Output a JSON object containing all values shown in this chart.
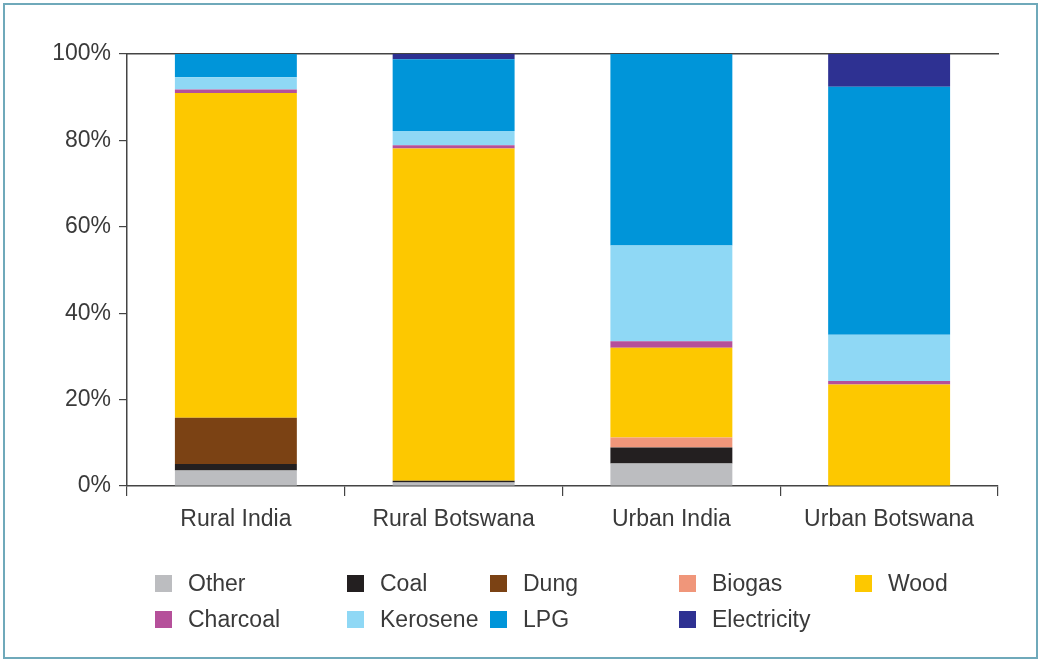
{
  "chart_data": {
    "type": "bar",
    "stacked": true,
    "legend": "bottom",
    "categories": [
      "Rural India",
      "Rural Botswana",
      "Urban India",
      "Urban Botswana"
    ],
    "series": [
      {
        "name": "Other",
        "color": "#bcbdc0",
        "values": [
          3.6,
          0.8,
          5.2,
          0
        ]
      },
      {
        "name": "Coal",
        "color": "#231f20",
        "values": [
          1.5,
          0.4,
          3.7,
          0
        ]
      },
      {
        "name": "Dung",
        "color": "#7b4214",
        "values": [
          10.7,
          0,
          0,
          0
        ]
      },
      {
        "name": "Biogas",
        "color": "#f0967a",
        "values": [
          0,
          0,
          2.3,
          0
        ]
      },
      {
        "name": "Wood",
        "color": "#fdc800",
        "values": [
          75.2,
          76.9,
          20.8,
          23.5
        ]
      },
      {
        "name": "Charcoal",
        "color": "#b5509a",
        "values": [
          0.8,
          0.8,
          1.5,
          0.8
        ]
      },
      {
        "name": "Kerosene",
        "color": "#8fd8f5",
        "values": [
          2.8,
          3.3,
          22.2,
          10.7
        ]
      },
      {
        "name": "LPG",
        "color": "#0095d9",
        "values": [
          5.4,
          16.6,
          44.3,
          57.4
        ]
      },
      {
        "name": "Electricity",
        "color": "#2e3192",
        "values": [
          0,
          1.2,
          0,
          7.6
        ]
      }
    ],
    "ylim": [
      0,
      100
    ],
    "yticks": [
      {
        "value": 0,
        "label": "0%"
      },
      {
        "value": 20,
        "label": "20%"
      },
      {
        "value": 40,
        "label": "40%"
      },
      {
        "value": 60,
        "label": "60%"
      },
      {
        "value": 80,
        "label": "80%"
      },
      {
        "value": 100,
        "label": "100%"
      }
    ]
  }
}
